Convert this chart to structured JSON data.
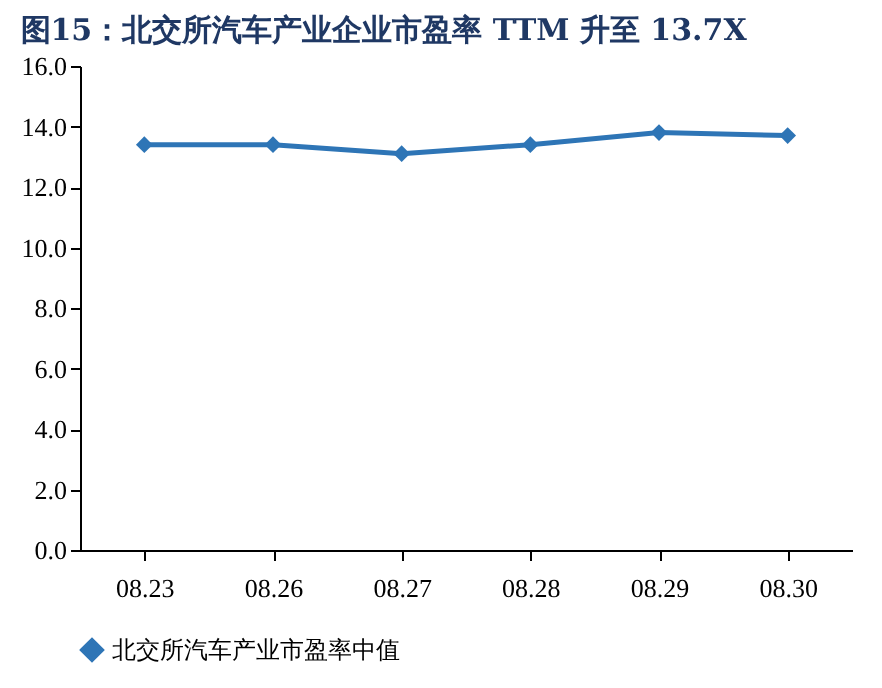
{
  "chart_data": {
    "type": "line",
    "title": "图15：北交所汽车产业企业市盈率 TTM 升至 13.7X",
    "categories": [
      "08.23",
      "08.26",
      "08.27",
      "08.28",
      "08.29",
      "08.30"
    ],
    "series": [
      {
        "name": "北交所汽车产业市盈率中值",
        "color": "#2e75b6",
        "values": [
          13.4,
          13.4,
          13.1,
          13.4,
          13.8,
          13.7
        ]
      }
    ],
    "ylim": [
      0,
      16
    ],
    "yticks": [
      {
        "value": 0,
        "label": "0.0"
      },
      {
        "value": 2,
        "label": "2.0"
      },
      {
        "value": 4,
        "label": "4.0"
      },
      {
        "value": 6,
        "label": "6.0"
      },
      {
        "value": 8,
        "label": "8.0"
      },
      {
        "value": 10,
        "label": "10.0"
      },
      {
        "value": 12,
        "label": "12.0"
      },
      {
        "value": 14,
        "label": "14.0"
      },
      {
        "value": 16,
        "label": "16.0"
      }
    ],
    "grid": false,
    "legend": "bottom",
    "marker": "diamond",
    "line_style": "solid"
  }
}
